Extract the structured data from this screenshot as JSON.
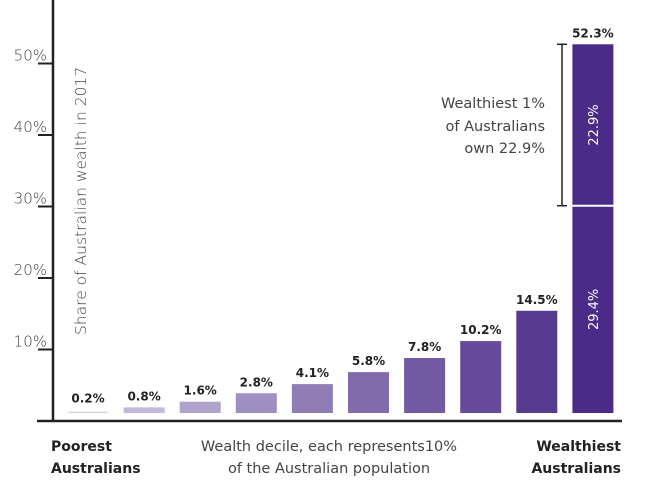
{
  "chart_data": {
    "type": "bar",
    "ylabel": "Share of Australian wealth in 2017",
    "xlabel_lines": [
      "Wealth decile, each represents10%",
      "of the Australian population"
    ],
    "left_label_lines": [
      "Poorest",
      "Australians"
    ],
    "right_label_lines": [
      "Wealthiest",
      "Australians"
    ],
    "ylim": [
      0,
      55
    ],
    "yticks": [
      10,
      20,
      30,
      40,
      50
    ],
    "ytick_labels": [
      "10%",
      "20%",
      "30%",
      "40%",
      "50%"
    ],
    "grid": false,
    "categories": [
      "1",
      "2",
      "3",
      "4",
      "5",
      "6",
      "7",
      "8",
      "9",
      "10"
    ],
    "values": [
      0.2,
      0.8,
      1.6,
      2.8,
      4.1,
      5.8,
      7.8,
      10.2,
      14.5,
      52.3
    ],
    "value_labels": [
      "0.2%",
      "0.8%",
      "1.6%",
      "2.8%",
      "4.1%",
      "5.8%",
      "7.8%",
      "10.2%",
      "14.5%",
      "52.3%"
    ],
    "top_decile_segments": [
      {
        "value": 29.4,
        "label": "29.4%"
      },
      {
        "value": 22.9,
        "label": "22.9%"
      }
    ],
    "annotation_lines": [
      "Wealthiest 1%",
      "of Australians",
      "own 22.9%"
    ],
    "colors": {
      "lightest": "#dcd5e8",
      "darkest": "#4a2c88",
      "axis": "#222222"
    }
  }
}
